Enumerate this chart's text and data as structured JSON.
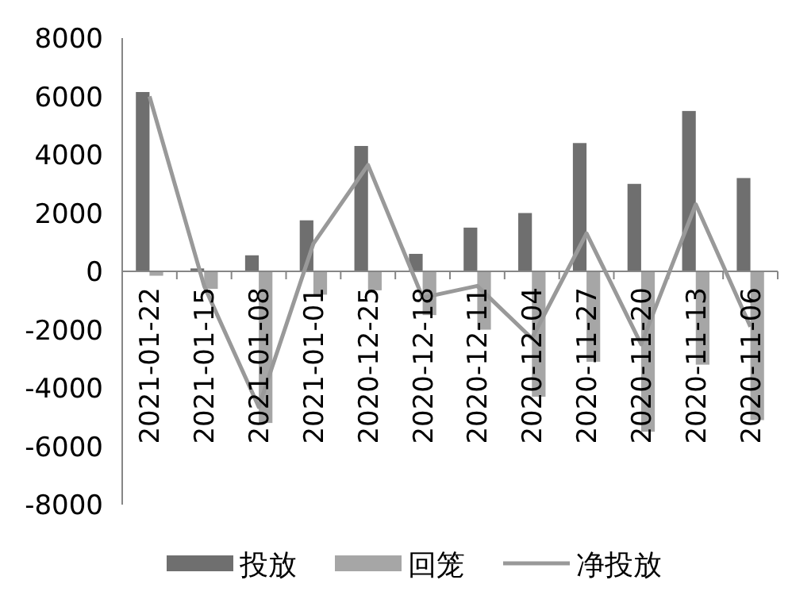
{
  "chart_data": {
    "type": "bar",
    "categories": [
      "2021-01-22",
      "2021-01-15",
      "2021-01-08",
      "2021-01-01",
      "2020-12-25",
      "2020-12-18",
      "2020-12-11",
      "2020-12-04",
      "2020-11-27",
      "2020-11-20",
      "2020-11-13",
      "2020-11-06"
    ],
    "series": [
      {
        "name": "投放",
        "color": "#6f6f6f",
        "values": [
          6150,
          100,
          550,
          1750,
          4300,
          600,
          1500,
          2000,
          4400,
          3000,
          5500,
          3200
        ]
      },
      {
        "name": "回笼",
        "color": "#a6a6a6",
        "values": [
          -150,
          -600,
          -5200,
          -800,
          -650,
          -1500,
          -2000,
          -4300,
          -3100,
          -5500,
          -3200,
          -5100
        ]
      },
      {
        "name": "净投放",
        "type": "line",
        "color": "#999999",
        "values": [
          6000,
          -500,
          -4650,
          950,
          3650,
          -900,
          -500,
          -2300,
          1300,
          -2500,
          2300,
          -1900
        ]
      }
    ],
    "ylim": [
      -8000,
      8000
    ],
    "yticks": [
      -8000,
      -6000,
      -4000,
      -2000,
      0,
      2000,
      4000,
      6000,
      8000
    ],
    "legend": "bottom",
    "grid": false
  }
}
